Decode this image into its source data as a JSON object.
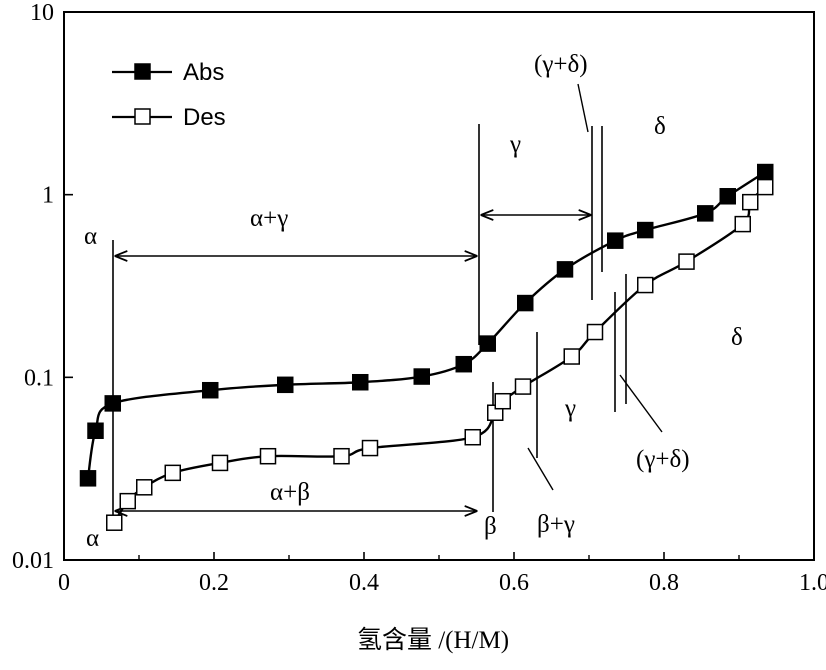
{
  "chart_data": {
    "type": "line",
    "xlabel": "氢含量 /(H/M)",
    "ylabel": "",
    "xlim": [
      0,
      1.0
    ],
    "ylim": [
      0.01,
      10
    ],
    "yscale": "log",
    "grid": false,
    "legend_position": "top-left",
    "x_ticks": [
      "0",
      "0.2",
      "0.4",
      "0.6",
      "0.8",
      "1.0"
    ],
    "y_ticks": [
      "0.01",
      "0.1",
      "1",
      "10"
    ],
    "series": [
      {
        "name": "Abs",
        "marker": "filled-square",
        "x": [
          0.032,
          0.042,
          0.065,
          0.195,
          0.295,
          0.395,
          0.477,
          0.533,
          0.565,
          0.615,
          0.668,
          0.735,
          0.775,
          0.855,
          0.885,
          0.935
        ],
        "y": [
          0.028,
          0.051,
          0.072,
          0.085,
          0.091,
          0.094,
          0.101,
          0.118,
          0.153,
          0.255,
          0.39,
          0.56,
          0.64,
          0.79,
          0.98,
          1.33
        ]
      },
      {
        "name": "Des",
        "marker": "open-square",
        "x": [
          0.067,
          0.085,
          0.107,
          0.145,
          0.208,
          0.272,
          0.37,
          0.408,
          0.545,
          0.575,
          0.585,
          0.612,
          0.677,
          0.708,
          0.775,
          0.83,
          0.905,
          0.915,
          0.935
        ],
        "y": [
          0.016,
          0.021,
          0.025,
          0.03,
          0.034,
          0.037,
          0.037,
          0.041,
          0.047,
          0.064,
          0.074,
          0.089,
          0.13,
          0.177,
          0.32,
          0.43,
          0.69,
          0.91,
          1.1
        ]
      }
    ],
    "annotations": {
      "alpha_top": "α",
      "alpha_gamma": "α+γ",
      "gamma_top": "γ",
      "gamma_delta_top": "(γ+δ)",
      "delta_top": "δ",
      "alpha_bottom": "α",
      "alpha_beta": "α+β",
      "beta": "β",
      "beta_gamma": "β+γ",
      "gamma_bottom": "γ",
      "gamma_delta_bottom": "(γ+δ)",
      "delta_bottom": "δ"
    }
  }
}
